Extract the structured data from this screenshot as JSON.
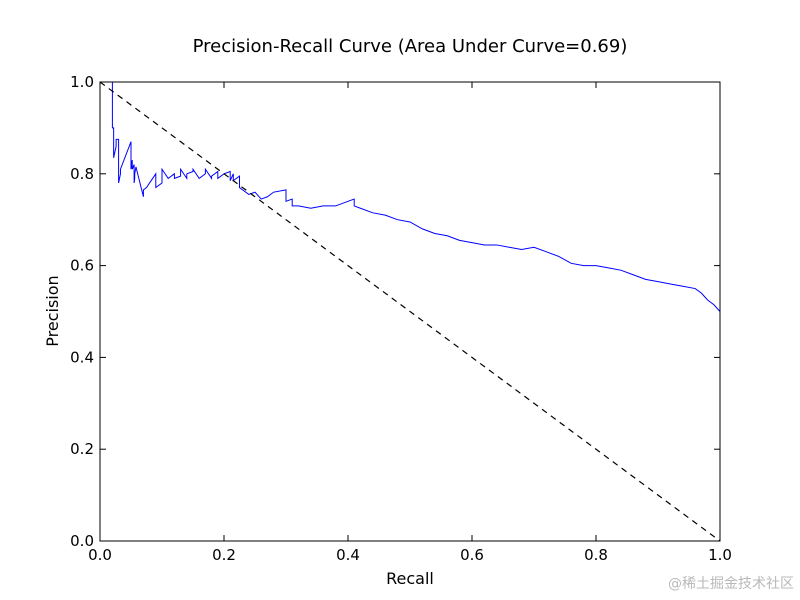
{
  "chart_data": {
    "type": "line",
    "title": "Precision-Recall Curve (Area Under Curve=0.69)",
    "xlabel": "Recall",
    "ylabel": "Precision",
    "xlim": [
      0.0,
      1.0
    ],
    "ylim": [
      0.0,
      1.0
    ],
    "x_ticks": [
      "0.0",
      "0.2",
      "0.4",
      "0.6",
      "0.8",
      "1.0"
    ],
    "y_ticks": [
      "0.0",
      "0.2",
      "0.4",
      "0.6",
      "0.8",
      "1.0"
    ],
    "grid": false,
    "legend": "none",
    "colors": {
      "curve": "#0000ff",
      "baseline": "#000000"
    },
    "series": [
      {
        "style": "solid",
        "x": [
          0.0,
          0.02,
          0.02,
          0.022,
          0.022,
          0.026,
          0.026,
          0.03,
          0.03,
          0.033,
          0.033,
          0.05,
          0.05,
          0.052,
          0.052,
          0.055,
          0.055,
          0.056,
          0.056,
          0.058,
          0.058,
          0.07,
          0.07,
          0.075,
          0.075,
          0.09,
          0.09,
          0.1,
          0.1,
          0.11,
          0.11,
          0.12,
          0.12,
          0.13,
          0.13,
          0.14,
          0.14,
          0.15,
          0.15,
          0.16,
          0.16,
          0.17,
          0.17,
          0.18,
          0.18,
          0.19,
          0.19,
          0.2,
          0.2,
          0.21,
          0.21,
          0.215,
          0.215,
          0.225,
          0.225,
          0.23,
          0.24,
          0.25,
          0.26,
          0.27,
          0.28,
          0.3,
          0.3,
          0.31,
          0.31,
          0.32,
          0.34,
          0.36,
          0.38,
          0.4,
          0.41,
          0.41,
          0.42,
          0.44,
          0.46,
          0.48,
          0.5,
          0.52,
          0.54,
          0.56,
          0.58,
          0.6,
          0.62,
          0.64,
          0.66,
          0.68,
          0.7,
          0.72,
          0.74,
          0.76,
          0.78,
          0.8,
          0.82,
          0.84,
          0.86,
          0.88,
          0.9,
          0.92,
          0.94,
          0.96,
          0.97,
          0.98,
          0.99,
          1.0
        ],
        "y": [
          1.0,
          1.0,
          0.9,
          0.9,
          0.835,
          0.86,
          0.875,
          0.875,
          0.78,
          0.8,
          0.81,
          0.87,
          0.81,
          0.83,
          0.81,
          0.82,
          0.78,
          0.79,
          0.8,
          0.815,
          0.815,
          0.75,
          0.765,
          0.77,
          0.77,
          0.8,
          0.77,
          0.78,
          0.81,
          0.79,
          0.79,
          0.8,
          0.79,
          0.795,
          0.81,
          0.79,
          0.8,
          0.805,
          0.81,
          0.79,
          0.79,
          0.8,
          0.81,
          0.79,
          0.795,
          0.805,
          0.79,
          0.8,
          0.8,
          0.805,
          0.785,
          0.8,
          0.785,
          0.795,
          0.77,
          0.765,
          0.755,
          0.76,
          0.745,
          0.75,
          0.76,
          0.765,
          0.74,
          0.745,
          0.73,
          0.73,
          0.725,
          0.73,
          0.73,
          0.74,
          0.745,
          0.73,
          0.725,
          0.715,
          0.71,
          0.7,
          0.695,
          0.68,
          0.67,
          0.665,
          0.655,
          0.65,
          0.645,
          0.645,
          0.64,
          0.635,
          0.64,
          0.63,
          0.62,
          0.605,
          0.6,
          0.6,
          0.595,
          0.59,
          0.58,
          0.57,
          0.565,
          0.56,
          0.555,
          0.55,
          0.54,
          0.525,
          0.515,
          0.5
        ]
      },
      {
        "style": "dashed",
        "x": [
          0.0,
          1.0
        ],
        "y": [
          1.0,
          0.0
        ]
      }
    ]
  },
  "watermark": "@稀土掘金技术社区"
}
